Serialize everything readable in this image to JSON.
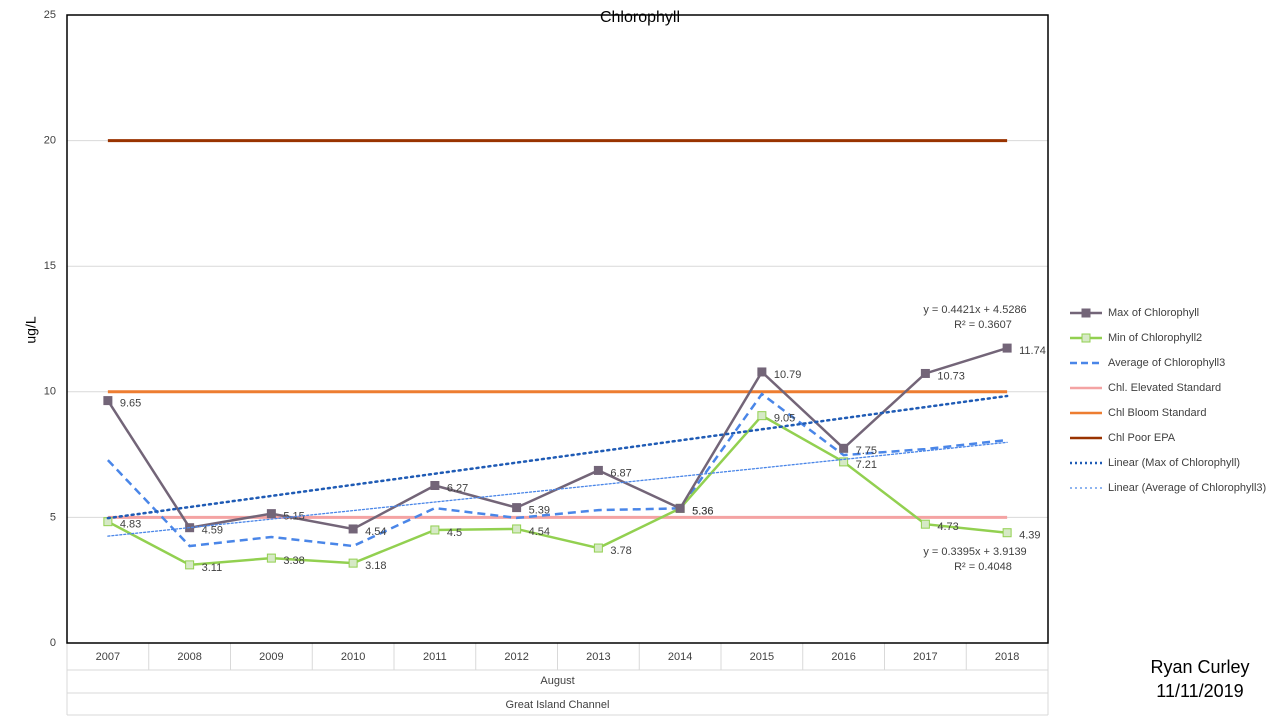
{
  "chart_data": {
    "type": "line",
    "title": "Chlorophyll",
    "y_label": "ug/L",
    "categories": [
      "2007",
      "2008",
      "2009",
      "2010",
      "2011",
      "2012",
      "2013",
      "2014",
      "2015",
      "2016",
      "2017",
      "2018"
    ],
    "group_labels": [
      "August",
      "Great Island Channel"
    ],
    "ylim": [
      0,
      25
    ],
    "yticks": [
      0,
      5,
      10,
      15,
      20,
      25
    ],
    "grid": true,
    "legend": "right",
    "series": [
      {
        "name": "Max of Chlorophyll",
        "color": "#736578",
        "marker": "square",
        "dash": "solid",
        "show_labels": true,
        "values": [
          9.65,
          4.59,
          5.15,
          4.54,
          6.27,
          5.39,
          6.87,
          5.36,
          10.79,
          7.75,
          10.73,
          11.74
        ]
      },
      {
        "name": "Min of Chlorophyll2",
        "color": "#92d050",
        "marker": "square",
        "dash": "solid",
        "show_labels": true,
        "values": [
          4.83,
          3.11,
          3.38,
          3.18,
          4.5,
          4.54,
          3.78,
          5.36,
          9.05,
          7.21,
          4.73,
          4.39
        ]
      },
      {
        "name": "Average of Chlorophyll3",
        "color": "#4a86e8",
        "marker": "none",
        "dash": "dashed",
        "show_labels": false,
        "values": [
          7.28,
          3.86,
          4.22,
          3.86,
          5.37,
          4.98,
          5.29,
          5.36,
          9.91,
          7.48,
          7.72,
          8.08
        ]
      },
      {
        "name": "Chl. Elevated Standard",
        "color": "#f4a3a3",
        "marker": "none",
        "dash": "solid",
        "show_labels": false,
        "values": [
          5,
          5,
          5,
          5,
          5,
          5,
          5,
          5,
          5,
          5,
          5,
          5
        ]
      },
      {
        "name": "Chl Bloom Standard",
        "color": "#ed7d31",
        "marker": "none",
        "dash": "solid",
        "show_labels": false,
        "values": [
          10,
          10,
          10,
          10,
          10,
          10,
          10,
          10,
          10,
          10,
          10,
          10
        ]
      },
      {
        "name": "Chl Poor EPA",
        "color": "#993300",
        "marker": "none",
        "dash": "solid",
        "show_labels": false,
        "values": [
          20,
          20,
          20,
          20,
          20,
          20,
          20,
          20,
          20,
          20,
          20,
          20
        ]
      }
    ],
    "trendlines": [
      {
        "name": "Linear (Max of Chlorophyll)",
        "color": "#1f5bb5",
        "width": 2.5,
        "slope": 0.4421,
        "intercept": 4.5286,
        "equation": "y = 0.4421x + 4.5286",
        "r2": "R² = 0.3607"
      },
      {
        "name": "Linear (Average of Chlorophyll3)",
        "color": "#4a86e8",
        "width": 1.3,
        "slope": 0.3395,
        "intercept": 3.9139,
        "equation": "y = 0.3395x + 3.9139",
        "r2": "R² = 0.4048"
      }
    ]
  },
  "footer": {
    "author": "Ryan Curley",
    "date": "11/11/2019"
  }
}
